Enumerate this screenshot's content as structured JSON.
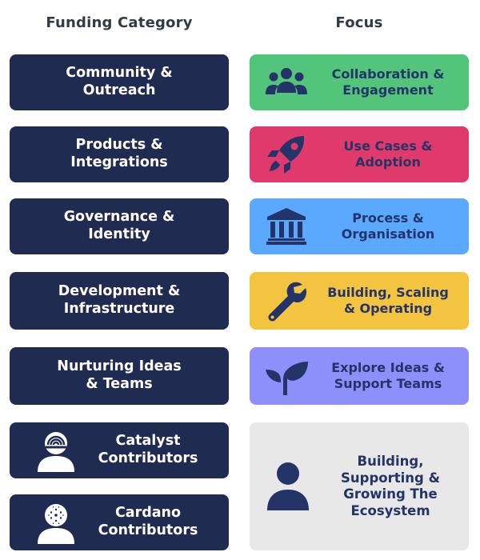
{
  "headers": {
    "left": "Funding Category",
    "right": "Focus"
  },
  "categories": [
    {
      "label": "Community &\nOutreach",
      "icon": ""
    },
    {
      "label": "Products &\nIntegrations",
      "icon": ""
    },
    {
      "label": "Governance &\nIdentity",
      "icon": ""
    },
    {
      "label": "Development &\nInfrastructure",
      "icon": ""
    },
    {
      "label": "Nurturing Ideas\n& Teams",
      "icon": ""
    },
    {
      "label": "Catalyst\nContributors",
      "icon": "catalyst-person-icon"
    },
    {
      "label": "Cardano\nContributors",
      "icon": "cardano-person-icon"
    }
  ],
  "focus": [
    {
      "label": "Collaboration &\nEngagement",
      "icon": "people-group-icon",
      "color": "#52c57a"
    },
    {
      "label": "Use Cases &\nAdoption",
      "icon": "rocket-icon",
      "color": "#df3a6b"
    },
    {
      "label": "Process &\nOrganisation",
      "icon": "institution-building-icon",
      "color": "#5ba9ff"
    },
    {
      "label": "Building, Scaling\n& Operating",
      "icon": "wrench-icon",
      "color": "#f2c440"
    },
    {
      "label": "Explore Ideas &\nSupport Teams",
      "icon": "sprout-icon",
      "color": "#8d8ffb"
    },
    {
      "label": "Building,\nSupporting &\nGrowing The\nEcosystem",
      "icon": "person-icon",
      "color": "#e8e8e8"
    }
  ],
  "colors": {
    "dark_navy": "#202b52",
    "icon_navy": "#253468",
    "header_text": "#333a45"
  }
}
